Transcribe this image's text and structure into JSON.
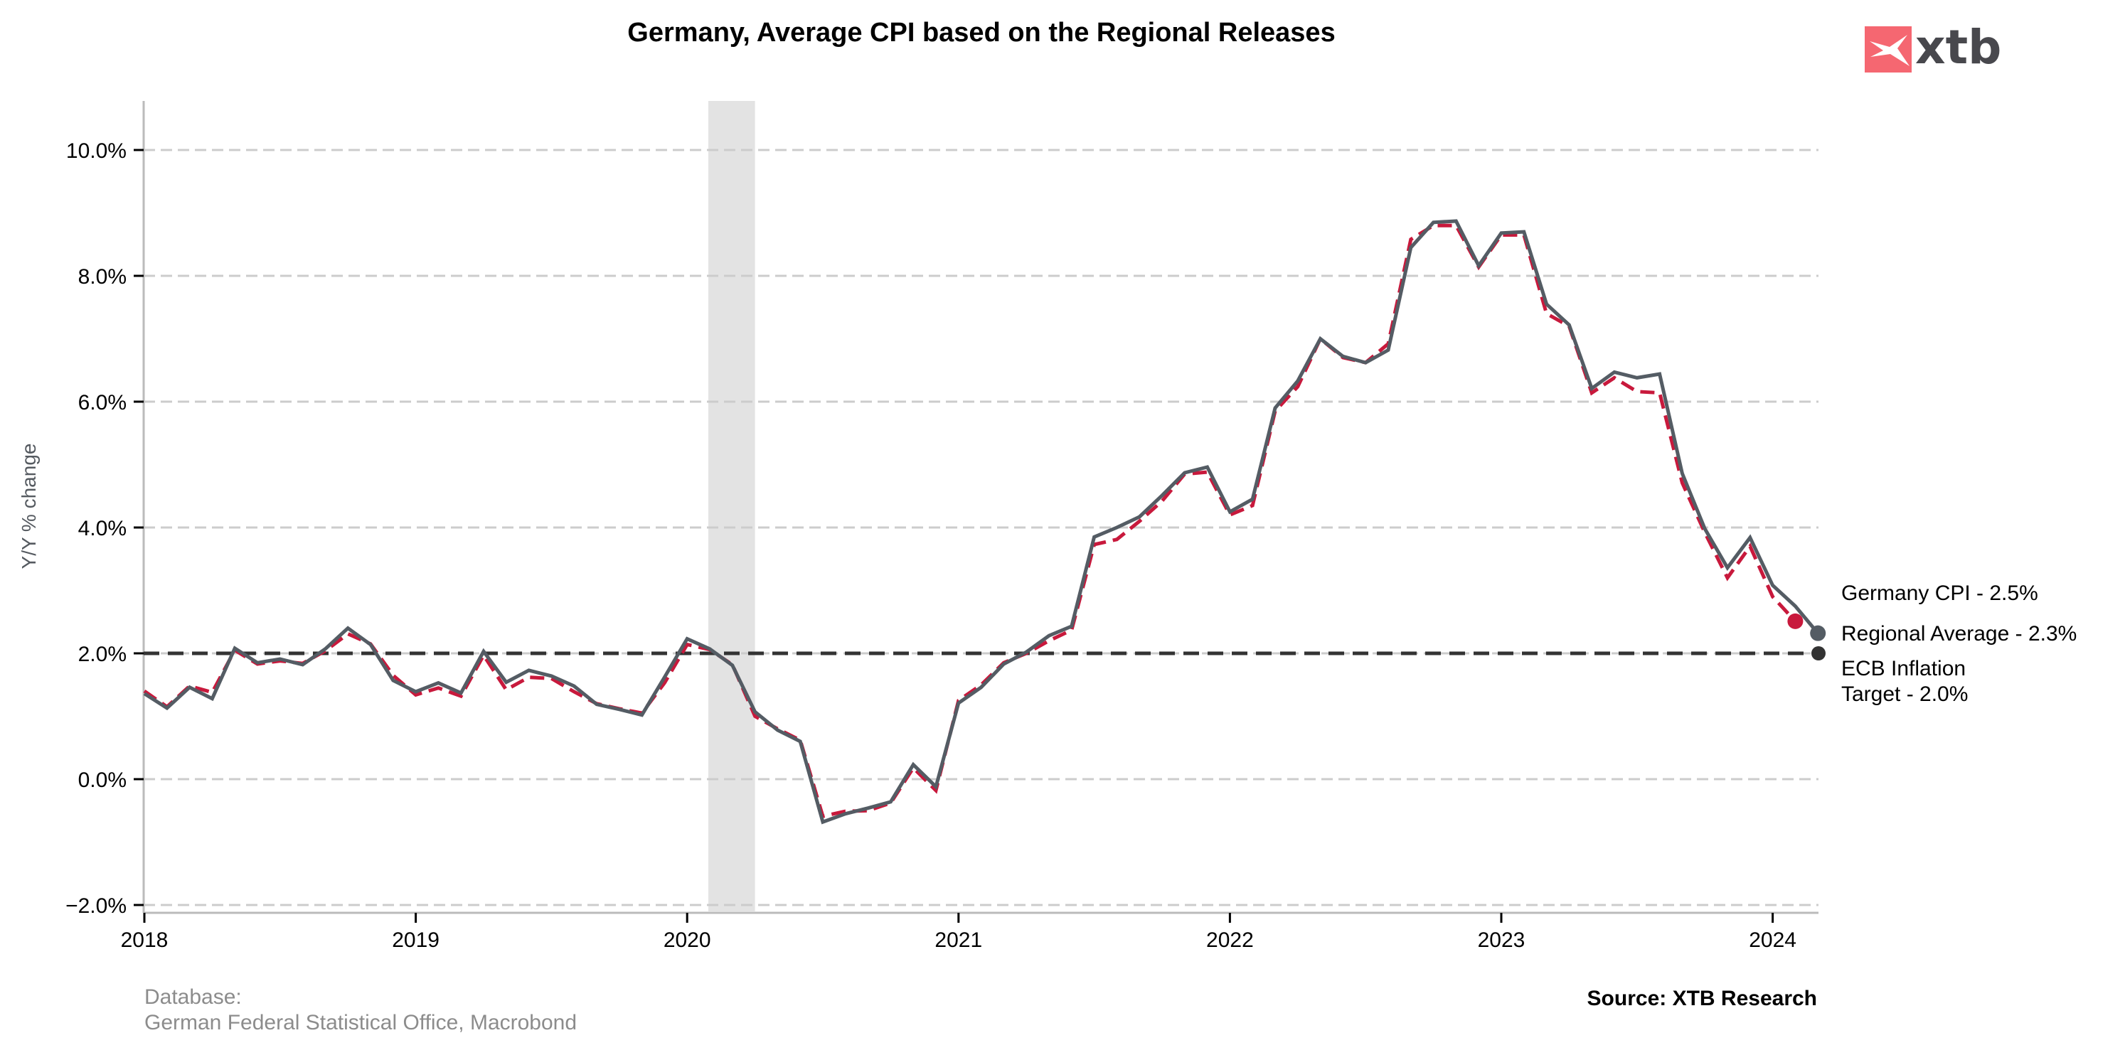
{
  "chart_data": {
    "type": "line",
    "title": "Germany, Average CPI based on the Regional Releases",
    "xlabel": "",
    "ylabel": "Y/Y % change",
    "x_start": "2018-01",
    "x_frequency": "monthly",
    "x_ticks": [
      "2018",
      "2019",
      "2020",
      "2021",
      "2022",
      "2023",
      "2024"
    ],
    "xlim": [
      "2018-01",
      "2024-03"
    ],
    "y_ticks": [
      "−2.0%",
      "0.0%",
      "2.0%",
      "4.0%",
      "6.0%",
      "8.0%",
      "10.0%"
    ],
    "y_tick_values": [
      -2,
      0,
      2,
      4,
      6,
      8,
      10
    ],
    "ylim": [
      -2.1,
      10.8
    ],
    "grid": "horizontal dashed",
    "shaded_region": {
      "from": "2020-02",
      "to": "2020-04",
      "color": "#e3e3e3"
    },
    "series": [
      {
        "name": "Germany CPI",
        "style": "dashed",
        "color": "#c8193c",
        "end_label": "Germany CPI - 2.5%",
        "values": [
          1.4,
          1.15,
          1.48,
          1.38,
          2.05,
          1.83,
          1.88,
          1.84,
          2.04,
          2.31,
          2.15,
          1.65,
          1.34,
          1.45,
          1.32,
          1.97,
          1.42,
          1.62,
          1.6,
          1.39,
          1.2,
          1.12,
          1.05,
          1.53,
          2.14,
          2.06,
          1.82,
          1.0,
          0.8,
          0.62,
          -0.59,
          -0.51,
          -0.5,
          -0.38,
          0.18,
          -0.18,
          1.25,
          1.5,
          1.85,
          2.0,
          2.2,
          2.37,
          3.73,
          3.81,
          4.1,
          4.42,
          4.85,
          4.88,
          4.2,
          4.35,
          5.85,
          6.24,
          7.0,
          6.7,
          6.62,
          6.92,
          8.58,
          8.8,
          8.8,
          8.14,
          8.65,
          8.65,
          7.4,
          7.2,
          6.14,
          6.38,
          6.16,
          6.14,
          4.71,
          3.92,
          3.2,
          3.7,
          2.9,
          2.51
        ]
      },
      {
        "name": "Regional Average",
        "style": "solid",
        "color": "#545c64",
        "end_label": "Regional Average - 2.3%",
        "values": [
          1.36,
          1.13,
          1.46,
          1.28,
          2.08,
          1.85,
          1.91,
          1.82,
          2.07,
          2.4,
          2.14,
          1.57,
          1.39,
          1.53,
          1.37,
          2.03,
          1.54,
          1.73,
          1.64,
          1.48,
          1.19,
          1.11,
          1.02,
          1.62,
          2.23,
          2.07,
          1.81,
          1.07,
          0.78,
          0.6,
          -0.68,
          -0.55,
          -0.46,
          -0.36,
          0.23,
          -0.12,
          1.21,
          1.46,
          1.83,
          2.02,
          2.28,
          2.43,
          3.85,
          4.0,
          4.17,
          4.51,
          4.87,
          4.96,
          4.25,
          4.45,
          5.9,
          6.33,
          7.0,
          6.72,
          6.62,
          6.82,
          8.45,
          8.85,
          8.87,
          8.16,
          8.68,
          8.7,
          7.55,
          7.22,
          6.21,
          6.47,
          6.38,
          6.44,
          4.86,
          3.98,
          3.36,
          3.84,
          3.08,
          2.75,
          2.32
        ]
      },
      {
        "name": "ECB Inflation Target",
        "style": "dashed",
        "color": "#333333",
        "end_label_lines": [
          "ECB Inflation",
          "Target - 2.0%"
        ],
        "constant": 2.0
      }
    ]
  },
  "footer": {
    "database_label": "Database:",
    "database_sources": "German Federal Statistical Office, Macrobond",
    "source": "Source: XTB Research"
  },
  "logo": {
    "text": "xtb",
    "mark_color": "#f56771",
    "text_color": "#48484d"
  },
  "colors": {
    "grid": "#cccccc",
    "axis": "#bbbbbb",
    "shade": "#e3e3e3"
  }
}
